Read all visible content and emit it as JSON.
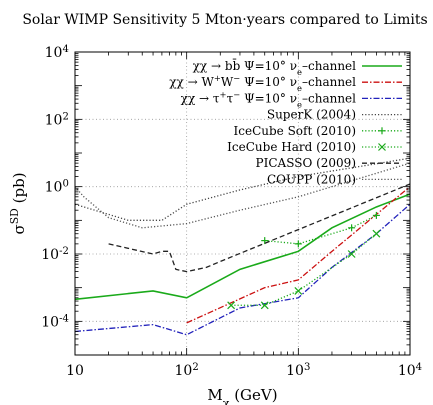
{
  "chart_data": {
    "type": "line",
    "title": "Solar WIMP Sensitivity 5 Mton·years compared to Limits",
    "xlabel": "M_χ (GeV)",
    "ylabel": "σ^SD (pb)",
    "xscale": "log",
    "yscale": "log",
    "xlim": [
      10,
      10000
    ],
    "ylim": [
      1e-05,
      10000
    ],
    "x_ticks": [
      {
        "value": 10,
        "label": "10"
      },
      {
        "value": 100,
        "label": "10^2"
      },
      {
        "value": 1000,
        "label": "10^3"
      },
      {
        "value": 10000,
        "label": "10^4"
      }
    ],
    "y_ticks": [
      {
        "value": 0.0001,
        "label": "10^-4"
      },
      {
        "value": 0.01,
        "label": "10^-2"
      },
      {
        "value": 1,
        "label": "10^0"
      },
      {
        "value": 100,
        "label": "10^2"
      },
      {
        "value": 10000,
        "label": "10^4"
      }
    ],
    "grid": true,
    "grid_style": "dotted, at major decades",
    "legend_position": "top-right",
    "series": [
      {
        "name": "χχ → bb̄ Ψ=10° ν_e–channel",
        "color": "#1aaa1a",
        "style": "solid",
        "x": [
          10,
          50,
          100,
          300,
          1000,
          2000,
          5000,
          10000
        ],
        "y": [
          0.00045,
          0.0008,
          0.0005,
          0.0035,
          0.012,
          0.06,
          0.25,
          0.6
        ]
      },
      {
        "name": "χχ → W⁺W⁻ Ψ=10° ν_e–channel",
        "color": "#cc1111",
        "style": "dash-dot",
        "x": [
          100,
          500,
          1000,
          2000,
          5000,
          10000
        ],
        "y": [
          9e-05,
          0.001,
          0.0017,
          0.012,
          0.15,
          1.0
        ]
      },
      {
        "name": "χχ → τ⁺τ⁻ Ψ=10° ν_e–channel",
        "color": "#2222bb",
        "style": "dash-dot",
        "x": [
          10,
          50,
          100,
          300,
          1000,
          2000,
          5000,
          10000
        ],
        "y": [
          5e-05,
          8e-05,
          4e-05,
          0.00025,
          0.0005,
          0.004,
          0.04,
          0.3
        ]
      },
      {
        "name": "SuperK (2004)",
        "color": "#444444",
        "style": "dotted",
        "x": [
          10,
          30,
          60,
          100,
          300,
          1000,
          10000
        ],
        "y": [
          0.3,
          0.1,
          0.1,
          0.3,
          0.8,
          2.0,
          7.0
        ]
      },
      {
        "name": "IceCube Soft (2010)",
        "color": "#1aaa1a",
        "style": "dotted",
        "marker": "plus",
        "x": [
          500,
          1000,
          3000,
          5000
        ],
        "y": [
          0.025,
          0.02,
          0.06,
          0.14
        ]
      },
      {
        "name": "IceCube Hard (2010)",
        "color": "#1aaa1a",
        "style": "dotted",
        "marker": "cross",
        "x": [
          250,
          500,
          1000,
          3000,
          5000
        ],
        "y": [
          0.0003,
          0.0003,
          0.0008,
          0.01,
          0.04
        ]
      },
      {
        "name": "PICASSO (2009)",
        "color": "#222222",
        "style": "dashed",
        "x": [
          20,
          50,
          60,
          70,
          80,
          100,
          150,
          200,
          10000
        ],
        "y": [
          0.02,
          0.01,
          0.012,
          0.012,
          0.0035,
          0.003,
          0.004,
          0.006,
          1.2
        ]
      },
      {
        "name": "COUPP (2010)",
        "color": "#555555",
        "style": "dotted",
        "x": [
          10,
          12,
          20,
          40,
          100,
          300,
          1000,
          3000,
          10000
        ],
        "y": [
          1.0,
          0.5,
          0.12,
          0.06,
          0.08,
          0.2,
          0.5,
          1.5,
          5.0
        ]
      }
    ]
  }
}
